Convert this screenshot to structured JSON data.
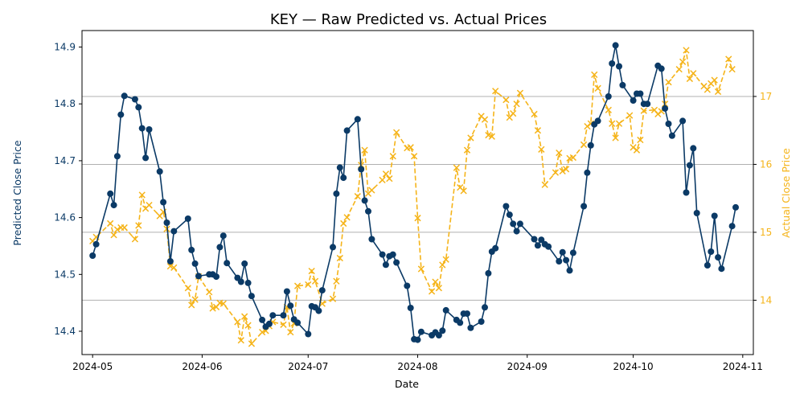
{
  "chart_data": {
    "type": "line",
    "title": "KEY — Raw Predicted vs. Actual Prices",
    "xlabel": "Date",
    "ylabel_left": "Predicted Close Price",
    "ylabel_right": "Actual Close Price",
    "x_ticks": [
      "2024-05",
      "2024-06",
      "2024-07",
      "2024-08",
      "2024-09",
      "2024-10",
      "2024-11"
    ],
    "y_left_ticks": [
      "14.4",
      "14.5",
      "14.6",
      "14.7",
      "14.8",
      "14.9"
    ],
    "y_right_ticks": [
      "14",
      "15",
      "16",
      "17"
    ],
    "grid": "right axis horizontal gridlines",
    "colors": {
      "predicted": "#0b3a66",
      "actual": "#f5b41a",
      "grid": "#b0b0b0",
      "axis": "#000000"
    },
    "series": [
      {
        "axis": "left",
        "marker": "circle",
        "style": "solid",
        "points": [
          [
            "2024-05-01",
            14.533
          ],
          [
            "2024-05-02",
            14.553
          ],
          [
            "2024-05-06",
            14.642
          ],
          [
            "2024-05-07",
            14.622
          ],
          [
            "2024-05-08",
            14.708
          ],
          [
            "2024-05-09",
            14.781
          ],
          [
            "2024-05-10",
            14.814
          ],
          [
            "2024-05-13",
            14.808
          ],
          [
            "2024-05-14",
            14.794
          ],
          [
            "2024-05-15",
            14.757
          ],
          [
            "2024-05-16",
            14.705
          ],
          [
            "2024-05-17",
            14.755
          ],
          [
            "2024-05-20",
            14.681
          ],
          [
            "2024-05-21",
            14.627
          ],
          [
            "2024-05-22",
            14.591
          ],
          [
            "2024-05-23",
            14.523
          ],
          [
            "2024-05-24",
            14.576
          ],
          [
            "2024-05-28",
            14.598
          ],
          [
            "2024-05-29",
            14.543
          ],
          [
            "2024-05-30",
            14.519
          ],
          [
            "2024-05-31",
            14.497
          ],
          [
            "2024-06-03",
            14.5
          ],
          [
            "2024-06-04",
            14.5
          ],
          [
            "2024-06-05",
            14.496
          ],
          [
            "2024-06-06",
            14.548
          ],
          [
            "2024-06-07",
            14.568
          ],
          [
            "2024-06-08",
            14.52
          ],
          [
            "2024-06-11",
            14.494
          ],
          [
            "2024-06-12",
            14.487
          ],
          [
            "2024-06-13",
            14.519
          ],
          [
            "2024-06-14",
            14.485
          ],
          [
            "2024-06-15",
            14.462
          ],
          [
            "2024-06-18",
            14.42
          ],
          [
            "2024-06-19",
            14.408
          ],
          [
            "2024-06-20",
            14.413
          ],
          [
            "2024-06-21",
            14.428
          ],
          [
            "2024-06-24",
            14.428
          ],
          [
            "2024-06-25",
            14.47
          ],
          [
            "2024-06-26",
            14.445
          ],
          [
            "2024-06-27",
            14.421
          ],
          [
            "2024-06-28",
            14.415
          ],
          [
            "2024-07-01",
            14.395
          ],
          [
            "2024-07-02",
            14.444
          ],
          [
            "2024-07-03",
            14.442
          ],
          [
            "2024-07-04",
            14.436
          ],
          [
            "2024-07-05",
            14.472
          ],
          [
            "2024-07-08",
            14.548
          ],
          [
            "2024-07-09",
            14.642
          ],
          [
            "2024-07-10",
            14.688
          ],
          [
            "2024-07-11",
            14.67
          ],
          [
            "2024-07-12",
            14.753
          ],
          [
            "2024-07-15",
            14.773
          ],
          [
            "2024-07-16",
            14.685
          ],
          [
            "2024-07-17",
            14.63
          ],
          [
            "2024-07-18",
            14.611
          ],
          [
            "2024-07-19",
            14.562
          ],
          [
            "2024-07-22",
            14.535
          ],
          [
            "2024-07-23",
            14.517
          ],
          [
            "2024-07-24",
            14.532
          ],
          [
            "2024-07-25",
            14.535
          ],
          [
            "2024-07-26",
            14.521
          ],
          [
            "2024-07-29",
            14.48
          ],
          [
            "2024-07-30",
            14.441
          ],
          [
            "2024-07-31",
            14.386
          ],
          [
            "2024-08-01",
            14.385
          ],
          [
            "2024-08-02",
            14.399
          ],
          [
            "2024-08-05",
            14.393
          ],
          [
            "2024-08-06",
            14.398
          ],
          [
            "2024-08-07",
            14.393
          ],
          [
            "2024-08-08",
            14.401
          ],
          [
            "2024-08-09",
            14.437
          ],
          [
            "2024-08-12",
            14.42
          ],
          [
            "2024-08-13",
            14.415
          ],
          [
            "2024-08-14",
            14.431
          ],
          [
            "2024-08-15",
            14.431
          ],
          [
            "2024-08-16",
            14.406
          ],
          [
            "2024-08-19",
            14.417
          ],
          [
            "2024-08-20",
            14.442
          ],
          [
            "2024-08-21",
            14.502
          ],
          [
            "2024-08-22",
            14.54
          ],
          [
            "2024-08-23",
            14.546
          ],
          [
            "2024-08-26",
            14.62
          ],
          [
            "2024-08-27",
            14.605
          ],
          [
            "2024-08-28",
            14.589
          ],
          [
            "2024-08-29",
            14.576
          ],
          [
            "2024-08-30",
            14.589
          ],
          [
            "2024-09-03",
            14.562
          ],
          [
            "2024-09-04",
            14.551
          ],
          [
            "2024-09-05",
            14.561
          ],
          [
            "2024-09-06",
            14.553
          ],
          [
            "2024-09-07",
            14.549
          ],
          [
            "2024-09-10",
            14.523
          ],
          [
            "2024-09-11",
            14.539
          ],
          [
            "2024-09-12",
            14.525
          ],
          [
            "2024-09-13",
            14.507
          ],
          [
            "2024-09-14",
            14.538
          ],
          [
            "2024-09-17",
            14.62
          ],
          [
            "2024-09-18",
            14.679
          ],
          [
            "2024-09-19",
            14.727
          ],
          [
            "2024-09-20",
            14.764
          ],
          [
            "2024-09-21",
            14.77
          ],
          [
            "2024-09-24",
            14.813
          ],
          [
            "2024-09-25",
            14.871
          ],
          [
            "2024-09-26",
            14.903
          ],
          [
            "2024-09-27",
            14.866
          ],
          [
            "2024-09-28",
            14.833
          ],
          [
            "2024-10-01",
            14.806
          ],
          [
            "2024-10-02",
            14.818
          ],
          [
            "2024-10-03",
            14.818
          ],
          [
            "2024-10-04",
            14.8
          ],
          [
            "2024-10-05",
            14.8
          ],
          [
            "2024-10-08",
            14.867
          ],
          [
            "2024-10-09",
            14.862
          ],
          [
            "2024-10-10",
            14.792
          ],
          [
            "2024-10-11",
            14.765
          ],
          [
            "2024-10-12",
            14.744
          ],
          [
            "2024-10-15",
            14.77
          ],
          [
            "2024-10-16",
            14.644
          ],
          [
            "2024-10-17",
            14.692
          ],
          [
            "2024-10-18",
            14.722
          ],
          [
            "2024-10-19",
            14.608
          ],
          [
            "2024-10-22",
            14.516
          ],
          [
            "2024-10-23",
            14.54
          ],
          [
            "2024-10-24",
            14.603
          ],
          [
            "2024-10-25",
            14.53
          ],
          [
            "2024-10-26",
            14.51
          ],
          [
            "2024-10-29",
            14.585
          ],
          [
            "2024-10-30",
            14.618
          ]
        ]
      },
      {
        "axis": "right",
        "marker": "x",
        "style": "dashed",
        "points": [
          [
            "2024-05-01",
            14.87
          ],
          [
            "2024-05-02",
            14.93
          ],
          [
            "2024-05-06",
            15.13
          ],
          [
            "2024-05-07",
            14.96
          ],
          [
            "2024-05-08",
            15.04
          ],
          [
            "2024-05-09",
            15.07
          ],
          [
            "2024-05-10",
            15.07
          ],
          [
            "2024-05-13",
            14.9
          ],
          [
            "2024-05-14",
            15.1
          ],
          [
            "2024-05-15",
            15.55
          ],
          [
            "2024-05-16",
            15.35
          ],
          [
            "2024-05-17",
            15.4
          ],
          [
            "2024-05-20",
            15.24
          ],
          [
            "2024-05-21",
            15.3
          ],
          [
            "2024-05-22",
            15.05
          ],
          [
            "2024-05-23",
            14.5
          ],
          [
            "2024-05-24",
            14.48
          ],
          [
            "2024-05-28",
            14.18
          ],
          [
            "2024-05-29",
            13.93
          ],
          [
            "2024-05-30",
            14.01
          ],
          [
            "2024-05-31",
            14.35
          ],
          [
            "2024-06-03",
            14.12
          ],
          [
            "2024-06-04",
            13.88
          ],
          [
            "2024-06-05",
            13.9
          ],
          [
            "2024-06-06",
            13.96
          ],
          [
            "2024-06-07",
            13.95
          ],
          [
            "2024-06-11",
            13.68
          ],
          [
            "2024-06-12",
            13.41
          ],
          [
            "2024-06-13",
            13.76
          ],
          [
            "2024-06-14",
            13.63
          ],
          [
            "2024-06-15",
            13.36
          ],
          [
            "2024-06-18",
            13.53
          ],
          [
            "2024-06-19",
            13.55
          ],
          [
            "2024-06-20",
            13.62
          ],
          [
            "2024-06-21",
            13.68
          ],
          [
            "2024-06-24",
            13.64
          ],
          [
            "2024-06-25",
            13.9
          ],
          [
            "2024-06-26",
            13.53
          ],
          [
            "2024-06-27",
            13.66
          ],
          [
            "2024-06-28",
            14.21
          ],
          [
            "2024-07-01",
            14.23
          ],
          [
            "2024-07-02",
            14.43
          ],
          [
            "2024-07-03",
            14.28
          ],
          [
            "2024-07-05",
            13.95
          ],
          [
            "2024-07-08",
            14.02
          ],
          [
            "2024-07-09",
            14.28
          ],
          [
            "2024-07-10",
            14.62
          ],
          [
            "2024-07-11",
            15.13
          ],
          [
            "2024-07-12",
            15.22
          ],
          [
            "2024-07-15",
            15.53
          ],
          [
            "2024-07-16",
            15.99
          ],
          [
            "2024-07-17",
            16.21
          ],
          [
            "2024-07-18",
            15.57
          ],
          [
            "2024-07-19",
            15.62
          ],
          [
            "2024-07-22",
            15.77
          ],
          [
            "2024-07-23",
            15.86
          ],
          [
            "2024-07-24",
            15.79
          ],
          [
            "2024-07-25",
            16.12
          ],
          [
            "2024-07-26",
            16.47
          ],
          [
            "2024-07-29",
            16.24
          ],
          [
            "2024-07-30",
            16.25
          ],
          [
            "2024-07-31",
            16.12
          ],
          [
            "2024-08-01",
            15.21
          ],
          [
            "2024-08-02",
            14.46
          ],
          [
            "2024-08-05",
            14.13
          ],
          [
            "2024-08-06",
            14.27
          ],
          [
            "2024-08-07",
            14.18
          ],
          [
            "2024-08-08",
            14.52
          ],
          [
            "2024-08-09",
            14.6
          ],
          [
            "2024-08-12",
            15.95
          ],
          [
            "2024-08-13",
            15.66
          ],
          [
            "2024-08-14",
            15.61
          ],
          [
            "2024-08-15",
            16.21
          ],
          [
            "2024-08-16",
            16.39
          ],
          [
            "2024-08-19",
            16.71
          ],
          [
            "2024-08-20",
            16.66
          ],
          [
            "2024-08-21",
            16.43
          ],
          [
            "2024-08-22",
            16.41
          ],
          [
            "2024-08-23",
            17.08
          ],
          [
            "2024-08-26",
            16.95
          ],
          [
            "2024-08-27",
            16.69
          ],
          [
            "2024-08-28",
            16.75
          ],
          [
            "2024-08-29",
            16.89
          ],
          [
            "2024-08-30",
            17.05
          ],
          [
            "2024-09-03",
            16.74
          ],
          [
            "2024-09-04",
            16.5
          ],
          [
            "2024-09-05",
            16.22
          ],
          [
            "2024-09-06",
            15.7
          ],
          [
            "2024-09-09",
            15.88
          ],
          [
            "2024-09-10",
            16.17
          ],
          [
            "2024-09-11",
            15.9
          ],
          [
            "2024-09-12",
            15.93
          ],
          [
            "2024-09-13",
            16.09
          ],
          [
            "2024-09-14",
            16.1
          ],
          [
            "2024-09-17",
            16.29
          ],
          [
            "2024-09-18",
            16.56
          ],
          [
            "2024-09-19",
            16.6
          ],
          [
            "2024-09-20",
            17.32
          ],
          [
            "2024-09-21",
            17.12
          ],
          [
            "2024-09-24",
            16.8
          ],
          [
            "2024-09-25",
            16.6
          ],
          [
            "2024-09-26",
            16.39
          ],
          [
            "2024-09-27",
            16.6
          ],
          [
            "2024-09-30",
            16.72
          ],
          [
            "2024-10-01",
            16.25
          ],
          [
            "2024-10-02",
            16.21
          ],
          [
            "2024-10-03",
            16.36
          ],
          [
            "2024-10-04",
            16.79
          ],
          [
            "2024-10-07",
            16.8
          ],
          [
            "2024-10-08",
            16.74
          ],
          [
            "2024-10-09",
            16.78
          ],
          [
            "2024-10-10",
            16.89
          ],
          [
            "2024-10-11",
            17.21
          ],
          [
            "2024-10-14",
            17.4
          ],
          [
            "2024-10-15",
            17.51
          ],
          [
            "2024-10-16",
            17.68
          ],
          [
            "2024-10-17",
            17.26
          ],
          [
            "2024-10-18",
            17.34
          ],
          [
            "2024-10-21",
            17.15
          ],
          [
            "2024-10-22",
            17.1
          ],
          [
            "2024-10-23",
            17.19
          ],
          [
            "2024-10-24",
            17.24
          ],
          [
            "2024-10-25",
            17.07
          ],
          [
            "2024-10-28",
            17.55
          ],
          [
            "2024-10-29",
            17.4
          ]
        ]
      }
    ],
    "x_range": [
      "2024-04-28",
      "2024-11-04"
    ],
    "y_left_range": [
      14.359,
      14.929
    ],
    "y_right_range": [
      13.2,
      17.97
    ]
  }
}
